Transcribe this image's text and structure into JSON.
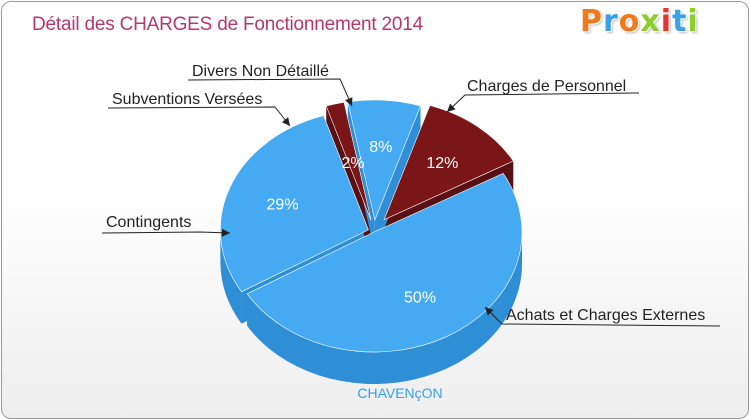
{
  "title": "Détail des CHARGES de Fonctionnement 2014",
  "logo": {
    "letters": [
      "P",
      "r",
      "o",
      "x",
      "i",
      "t",
      "i"
    ],
    "colors": [
      "#f07a1a",
      "#3aa0e8",
      "#f07a1a",
      "#8ccf2a",
      "#e8322a",
      "#3aa0e8",
      "#8ccf2a"
    ]
  },
  "commune": "CHAVENçON",
  "chart_data": {
    "type": "pie",
    "title": "Détail des CHARGES de Fonctionnement 2014",
    "series": [
      {
        "name": "Charges de Personnel",
        "percent": 12,
        "label": "12%",
        "color": "#7a1518",
        "side": "#5a0f12"
      },
      {
        "name": "Achats et Charges Externes",
        "percent": 50,
        "label": "50%",
        "color": "#45aaf2",
        "side": "#2f8fd6"
      },
      {
        "name": "Contingents",
        "percent": 29,
        "label": "29%",
        "color": "#45aaf2",
        "side": "#2f8fd6"
      },
      {
        "name": "Subventions Versées",
        "percent": 2,
        "label": "2%",
        "color": "#7a1518",
        "side": "#5a0f12"
      },
      {
        "name": "Divers Non Détaillé",
        "percent": 8,
        "label": "8%",
        "color": "#45aaf2",
        "side": "#2f8fd6"
      }
    ]
  }
}
